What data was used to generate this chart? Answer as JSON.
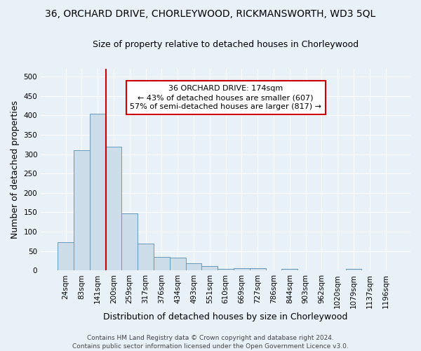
{
  "title": "36, ORCHARD DRIVE, CHORLEYWOOD, RICKMANSWORTH, WD3 5QL",
  "subtitle": "Size of property relative to detached houses in Chorleywood",
  "xlabel": "Distribution of detached houses by size in Chorleywood",
  "ylabel": "Number of detached properties",
  "footer_line1": "Contains HM Land Registry data © Crown copyright and database right 2024.",
  "footer_line2": "Contains public sector information licensed under the Open Government Licence v3.0.",
  "bin_labels": [
    "24sqm",
    "83sqm",
    "141sqm",
    "200sqm",
    "259sqm",
    "317sqm",
    "376sqm",
    "434sqm",
    "493sqm",
    "551sqm",
    "610sqm",
    "669sqm",
    "727sqm",
    "786sqm",
    "844sqm",
    "903sqm",
    "962sqm",
    "1020sqm",
    "1079sqm",
    "1137sqm",
    "1196sqm"
  ],
  "bar_values": [
    73,
    311,
    405,
    320,
    148,
    69,
    35,
    34,
    18,
    12,
    5,
    6,
    6,
    0,
    4,
    0,
    0,
    0,
    5,
    0,
    0
  ],
  "bar_color": "#ccdce8",
  "bar_edge_color": "#6699bb",
  "red_line_index": 2,
  "red_line_color": "#cc0000",
  "annotation_line1": "36 ORCHARD DRIVE: 174sqm",
  "annotation_line2": "← 43% of detached houses are smaller (607)",
  "annotation_line3": "57% of semi-detached houses are larger (817) →",
  "annotation_box_color": "#ffffff",
  "annotation_box_edge_color": "#cc0000",
  "ylim": [
    0,
    520
  ],
  "yticks": [
    0,
    50,
    100,
    150,
    200,
    250,
    300,
    350,
    400,
    450,
    500
  ],
  "bg_color": "#e8f0f8",
  "grid_color": "#ffffff",
  "title_fontsize": 10,
  "subtitle_fontsize": 9,
  "axis_label_fontsize": 9,
  "tick_fontsize": 7.5,
  "footer_fontsize": 6.5,
  "annotation_fontsize": 8
}
